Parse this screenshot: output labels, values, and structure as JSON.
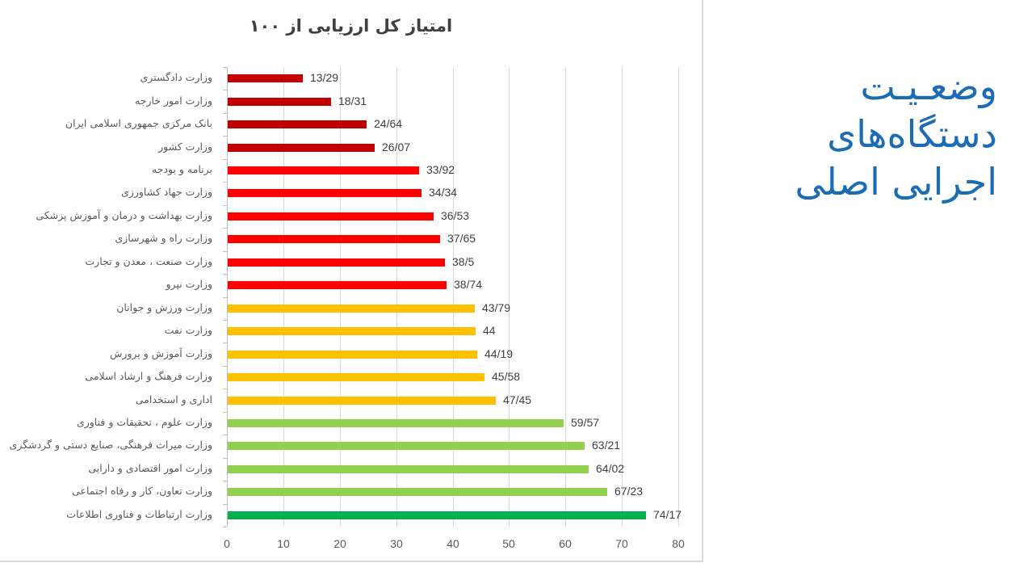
{
  "side_panel": {
    "title_lines": [
      "وضعـیـت",
      "دستگاه‌های",
      "اجرایی اصلی"
    ],
    "color": "#1b6cb5"
  },
  "chart_data": {
    "type": "bar",
    "orientation": "horizontal",
    "title": "امتیاز کل ارزیابی از ۱۰۰",
    "xlabel": "",
    "ylabel": "",
    "xlim": [
      0,
      80
    ],
    "x_ticks": [
      0,
      10,
      20,
      30,
      40,
      50,
      60,
      70,
      80
    ],
    "grid": true,
    "legend": null,
    "categories": [
      "وزارت دادگستری",
      "وزارت امور خارجه",
      "بانک مرکزی جمهوری اسلامی ایران",
      "وزارت کشور",
      "برنامه و بودجه",
      "وزارت جهاد کشاورزی",
      "وزارت بهداشت و درمان و آموزش پزشکی",
      "وزارت راه و شهرسازی",
      "وزارت صنعت ، معدن و تجارت",
      "وزارت نیرو",
      "وزارت ورزش و جوانان",
      "وزارت نفت",
      "وزارت آموزش و پرورش",
      "وزارت فرهنگ و ارشاد اسلامی",
      "اداری و استخدامی",
      "وزارت علوم ، تحقیقات و فناوری",
      "وزارت میراث فرهنگی، صنایع دستی و گردشگری",
      "وزارت امور اقتصادی و دارایی",
      "وزارت تعاون، کار و رفاه اجتماعی",
      "وزارت ارتباطات و فناوری اطلاعات"
    ],
    "values": [
      13.29,
      18.31,
      24.64,
      26.07,
      33.92,
      34.34,
      36.53,
      37.65,
      38.5,
      38.74,
      43.79,
      44,
      44.19,
      45.58,
      47.45,
      59.57,
      63.21,
      64.02,
      67.23,
      74.17
    ],
    "value_labels": [
      "13/29",
      "18/31",
      "24/64",
      "26/07",
      "33/92",
      "34/34",
      "36/53",
      "37/65",
      "38/5",
      "38/74",
      "43/79",
      "44",
      "44/19",
      "45/58",
      "47/45",
      "59/57",
      "63/21",
      "64/02",
      "67/23",
      "74/17"
    ],
    "bar_colors": [
      "#c00000",
      "#c00000",
      "#c00000",
      "#c00000",
      "#ff0000",
      "#ff0000",
      "#ff0000",
      "#ff0000",
      "#ff0000",
      "#ff0000",
      "#ffc000",
      "#ffc000",
      "#ffc000",
      "#ffc000",
      "#ffc000",
      "#92d050",
      "#92d050",
      "#92d050",
      "#92d050",
      "#00b050"
    ]
  }
}
